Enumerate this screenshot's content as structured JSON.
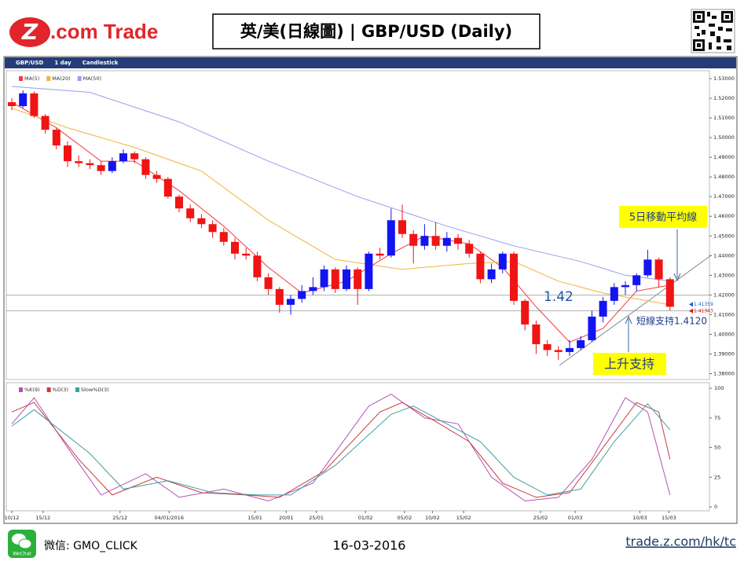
{
  "header": {
    "logo_mark": "Z",
    "logo_text": ".com Trade",
    "title": "英/美(日線圖) | GBP/USD  (Daily)"
  },
  "chart_data": {
    "type": "candlestick",
    "toolbar": [
      "GBP/USD",
      "1 day",
      "Candlestick"
    ],
    "up_color": "#1414f0",
    "down_color": "#f01414",
    "ohlc": [
      [
        1.518,
        1.52,
        1.514,
        1.516
      ],
      [
        1.516,
        1.524,
        1.515,
        1.5225
      ],
      [
        1.5225,
        1.5235,
        1.51,
        1.511
      ],
      [
        1.511,
        1.512,
        1.502,
        1.504
      ],
      [
        1.504,
        1.505,
        1.494,
        1.496
      ],
      [
        1.496,
        1.498,
        1.485,
        1.488
      ],
      [
        1.488,
        1.491,
        1.485,
        1.487
      ],
      [
        1.487,
        1.489,
        1.484,
        1.486
      ],
      [
        1.486,
        1.488,
        1.481,
        1.483
      ],
      [
        1.483,
        1.49,
        1.482,
        1.488
      ],
      [
        1.488,
        1.494,
        1.487,
        1.492
      ],
      [
        1.492,
        1.493,
        1.487,
        1.489
      ],
      [
        1.489,
        1.49,
        1.479,
        1.481
      ],
      [
        1.481,
        1.483,
        1.477,
        1.479
      ],
      [
        1.479,
        1.48,
        1.469,
        1.47
      ],
      [
        1.47,
        1.471,
        1.462,
        1.464
      ],
      [
        1.464,
        1.466,
        1.457,
        1.459
      ],
      [
        1.459,
        1.461,
        1.454,
        1.456
      ],
      [
        1.456,
        1.458,
        1.449,
        1.452
      ],
      [
        1.452,
        1.454,
        1.445,
        1.447
      ],
      [
        1.447,
        1.449,
        1.438,
        1.441
      ],
      [
        1.441,
        1.444,
        1.438,
        1.44
      ],
      [
        1.44,
        1.442,
        1.427,
        1.429
      ],
      [
        1.429,
        1.431,
        1.42,
        1.423
      ],
      [
        1.423,
        1.424,
        1.411,
        1.415
      ],
      [
        1.415,
        1.42,
        1.41,
        1.418
      ],
      [
        1.418,
        1.425,
        1.416,
        1.422
      ],
      [
        1.422,
        1.429,
        1.42,
        1.424
      ],
      [
        1.424,
        1.435,
        1.422,
        1.433
      ],
      [
        1.433,
        1.434,
        1.421,
        1.423
      ],
      [
        1.423,
        1.435,
        1.422,
        1.433
      ],
      [
        1.433,
        1.434,
        1.415,
        1.423
      ],
      [
        1.423,
        1.442,
        1.422,
        1.441
      ],
      [
        1.441,
        1.444,
        1.438,
        1.44
      ],
      [
        1.44,
        1.464,
        1.439,
        1.458
      ],
      [
        1.458,
        1.466,
        1.449,
        1.451
      ],
      [
        1.451,
        1.453,
        1.436,
        1.445
      ],
      [
        1.445,
        1.456,
        1.443,
        1.45
      ],
      [
        1.45,
        1.457,
        1.443,
        1.445
      ],
      [
        1.445,
        1.452,
        1.442,
        1.449
      ],
      [
        1.449,
        1.451,
        1.443,
        1.446
      ],
      [
        1.446,
        1.448,
        1.439,
        1.441
      ],
      [
        1.441,
        1.442,
        1.426,
        1.428
      ],
      [
        1.428,
        1.436,
        1.426,
        1.433
      ],
      [
        1.433,
        1.442,
        1.431,
        1.441
      ],
      [
        1.441,
        1.442,
        1.415,
        1.417
      ],
      [
        1.417,
        1.418,
        1.402,
        1.405
      ],
      [
        1.405,
        1.407,
        1.39,
        1.395
      ],
      [
        1.395,
        1.397,
        1.389,
        1.392
      ],
      [
        1.392,
        1.394,
        1.387,
        1.391
      ],
      [
        1.391,
        1.397,
        1.389,
        1.393
      ],
      [
        1.393,
        1.399,
        1.392,
        1.397
      ],
      [
        1.397,
        1.412,
        1.396,
        1.409
      ],
      [
        1.409,
        1.419,
        1.406,
        1.417
      ],
      [
        1.417,
        1.426,
        1.415,
        1.424
      ],
      [
        1.424,
        1.427,
        1.42,
        1.425
      ],
      [
        1.425,
        1.431,
        1.422,
        1.43
      ],
      [
        1.43,
        1.443,
        1.429,
        1.438
      ],
      [
        1.438,
        1.439,
        1.424,
        1.428
      ],
      [
        1.428,
        1.429,
        1.412,
        1.414
      ]
    ],
    "ylim": [
      1.377,
      1.534
    ],
    "yticks": [
      {
        "value": 1.53,
        "label": "1.53000"
      },
      {
        "value": 1.52,
        "label": "1.52000"
      },
      {
        "value": 1.51,
        "label": "1.51000"
      },
      {
        "value": 1.5,
        "label": "1.50000"
      },
      {
        "value": 1.49,
        "label": "1.49000"
      },
      {
        "value": 1.48,
        "label": "1.48000"
      },
      {
        "value": 1.47,
        "label": "1.47000"
      },
      {
        "value": 1.46,
        "label": "1.46000"
      },
      {
        "value": 1.45,
        "label": "1.45000"
      },
      {
        "value": 1.44,
        "label": "1.44000"
      },
      {
        "value": 1.43,
        "label": "1.43000"
      },
      {
        "value": 1.42,
        "label": "1.42000"
      },
      {
        "value": 1.41,
        "label": "1.41000"
      },
      {
        "value": 1.4,
        "label": "1.40000"
      },
      {
        "value": 1.39,
        "label": "1.39000"
      },
      {
        "value": 1.38,
        "label": "1.38000"
      }
    ],
    "xticks": [
      {
        "value": 1,
        "label": "10/12"
      },
      {
        "value": 3.8,
        "label": "15/12"
      },
      {
        "value": 10.7,
        "label": "25/12"
      },
      {
        "value": 15.1,
        "label": "04/01/2016"
      },
      {
        "value": 22.8,
        "label": "15/01"
      },
      {
        "value": 25.6,
        "label": "20/01"
      },
      {
        "value": 28.3,
        "label": "25/01"
      },
      {
        "value": 32.7,
        "label": "01/02"
      },
      {
        "value": 36.2,
        "label": "05/02"
      },
      {
        "value": 38.7,
        "label": "10/02"
      },
      {
        "value": 41.5,
        "label": "15/02"
      },
      {
        "value": 48.4,
        "label": "25/02"
      },
      {
        "value": 51.5,
        "label": "01/03"
      },
      {
        "value": 57.3,
        "label": "10/03"
      },
      {
        "value": 59.9,
        "label": "15/03"
      }
    ],
    "series": [
      {
        "name": "MA(5)",
        "color": "#f03c3c",
        "x": [
          1,
          5,
          9,
          12,
          16,
          20,
          24,
          27,
          31,
          35,
          38,
          42,
          45,
          48,
          51,
          54,
          57,
          60
        ],
        "values": [
          1.518,
          1.505,
          1.488,
          1.488,
          1.473,
          1.455,
          1.434,
          1.421,
          1.427,
          1.441,
          1.45,
          1.446,
          1.434,
          1.414,
          1.396,
          1.403,
          1.422,
          1.425
        ]
      },
      {
        "name": "MA(20)",
        "color": "#f0b43c",
        "x": [
          1,
          6,
          12,
          18,
          24,
          30,
          36,
          42,
          46,
          50,
          54,
          57,
          60
        ],
        "values": [
          1.515,
          1.505,
          1.495,
          1.483,
          1.458,
          1.438,
          1.433,
          1.436,
          1.437,
          1.427,
          1.421,
          1.418,
          1.415
        ]
      },
      {
        "name": "MA(50)",
        "color": "#9b9bf0",
        "x": [
          1,
          8,
          16,
          24,
          32,
          40,
          46,
          52,
          56,
          60
        ],
        "values": [
          1.526,
          1.523,
          1.508,
          1.488,
          1.47,
          1.455,
          1.445,
          1.437,
          1.43,
          1.427
        ]
      }
    ],
    "current_prices": [
      {
        "value": 1.41359,
        "color": "#1464c8"
      },
      {
        "value": 1.41343,
        "color": "#e01414"
      }
    ],
    "levels": [
      1.42,
      1.412
    ],
    "annotations": {
      "ma_note": "5日移動平均線",
      "level_label": 1.42,
      "support_note": "短線支持1.4120",
      "trend_note": "上升支持"
    },
    "oscillator": {
      "ylim": [
        -3.3,
        104.7
      ],
      "yticks": [
        0,
        25,
        50,
        75,
        100
      ],
      "series": [
        {
          "name": "%K(9)",
          "color": "#b450b4",
          "x": [
            1,
            3,
            6,
            9,
            13,
            16,
            20,
            24,
            28,
            33,
            35,
            38,
            41,
            44,
            47,
            50,
            53,
            56,
            58,
            60
          ],
          "values": [
            70,
            92,
            50,
            10,
            28,
            8,
            15,
            5,
            20,
            85,
            95,
            75,
            70,
            25,
            5,
            8,
            40,
            92,
            80,
            10
          ]
        },
        {
          "name": "%D(3)",
          "color": "#c83c3c",
          "x": [
            1,
            3,
            7,
            10,
            14,
            18,
            22,
            25,
            29,
            34,
            36,
            39,
            42,
            45,
            48,
            51,
            54,
            57,
            59,
            60
          ],
          "values": [
            80,
            88,
            40,
            10,
            25,
            12,
            10,
            8,
            30,
            80,
            88,
            72,
            55,
            20,
            8,
            12,
            50,
            88,
            80,
            40
          ]
        },
        {
          "name": "Slow%D(3)",
          "color": "#3ca0a0",
          "x": [
            1,
            3,
            8,
            11,
            15,
            19,
            23,
            26,
            30,
            35,
            37,
            40,
            43,
            46,
            49,
            52,
            55,
            58,
            60
          ],
          "values": [
            68,
            82,
            45,
            15,
            22,
            12,
            10,
            10,
            35,
            78,
            85,
            70,
            55,
            25,
            10,
            15,
            55,
            87,
            65
          ]
        }
      ]
    }
  },
  "footer": {
    "wechat_icon": "WeChat",
    "wechat": "微信: GMO_CLICK",
    "date": "16-03-2016",
    "url": "trade.z.com/hk/tc"
  }
}
